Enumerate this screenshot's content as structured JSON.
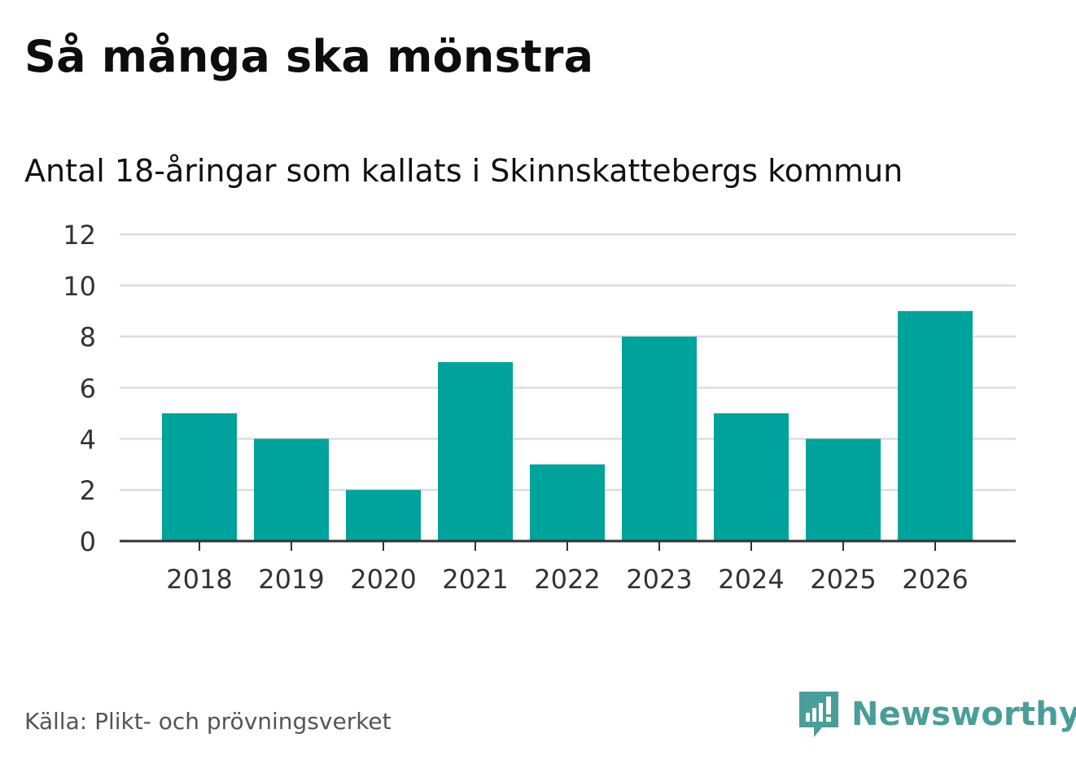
{
  "chart_data": {
    "type": "bar",
    "title": "Så många ska mönstra",
    "subtitle": "Antal 18-åringar som kallats i Skinnskattebergs kommun",
    "categories": [
      "2018",
      "2019",
      "2020",
      "2021",
      "2022",
      "2023",
      "2024",
      "2025",
      "2026"
    ],
    "values": [
      5,
      4,
      2,
      7,
      3,
      8,
      5,
      4,
      9
    ],
    "yticks": [
      0,
      2,
      4,
      6,
      8,
      10,
      12
    ],
    "ylim": [
      0,
      12
    ],
    "xlabel": "",
    "ylabel": "",
    "grid": true,
    "bar_color": "#00a39b",
    "grid_color": "#dddddd",
    "axis_color": "#333333"
  },
  "footer": {
    "source": "Källa: Plikt- och prövningsverket",
    "brand": "Newsworthy",
    "brand_color": "#4a9e9a"
  }
}
